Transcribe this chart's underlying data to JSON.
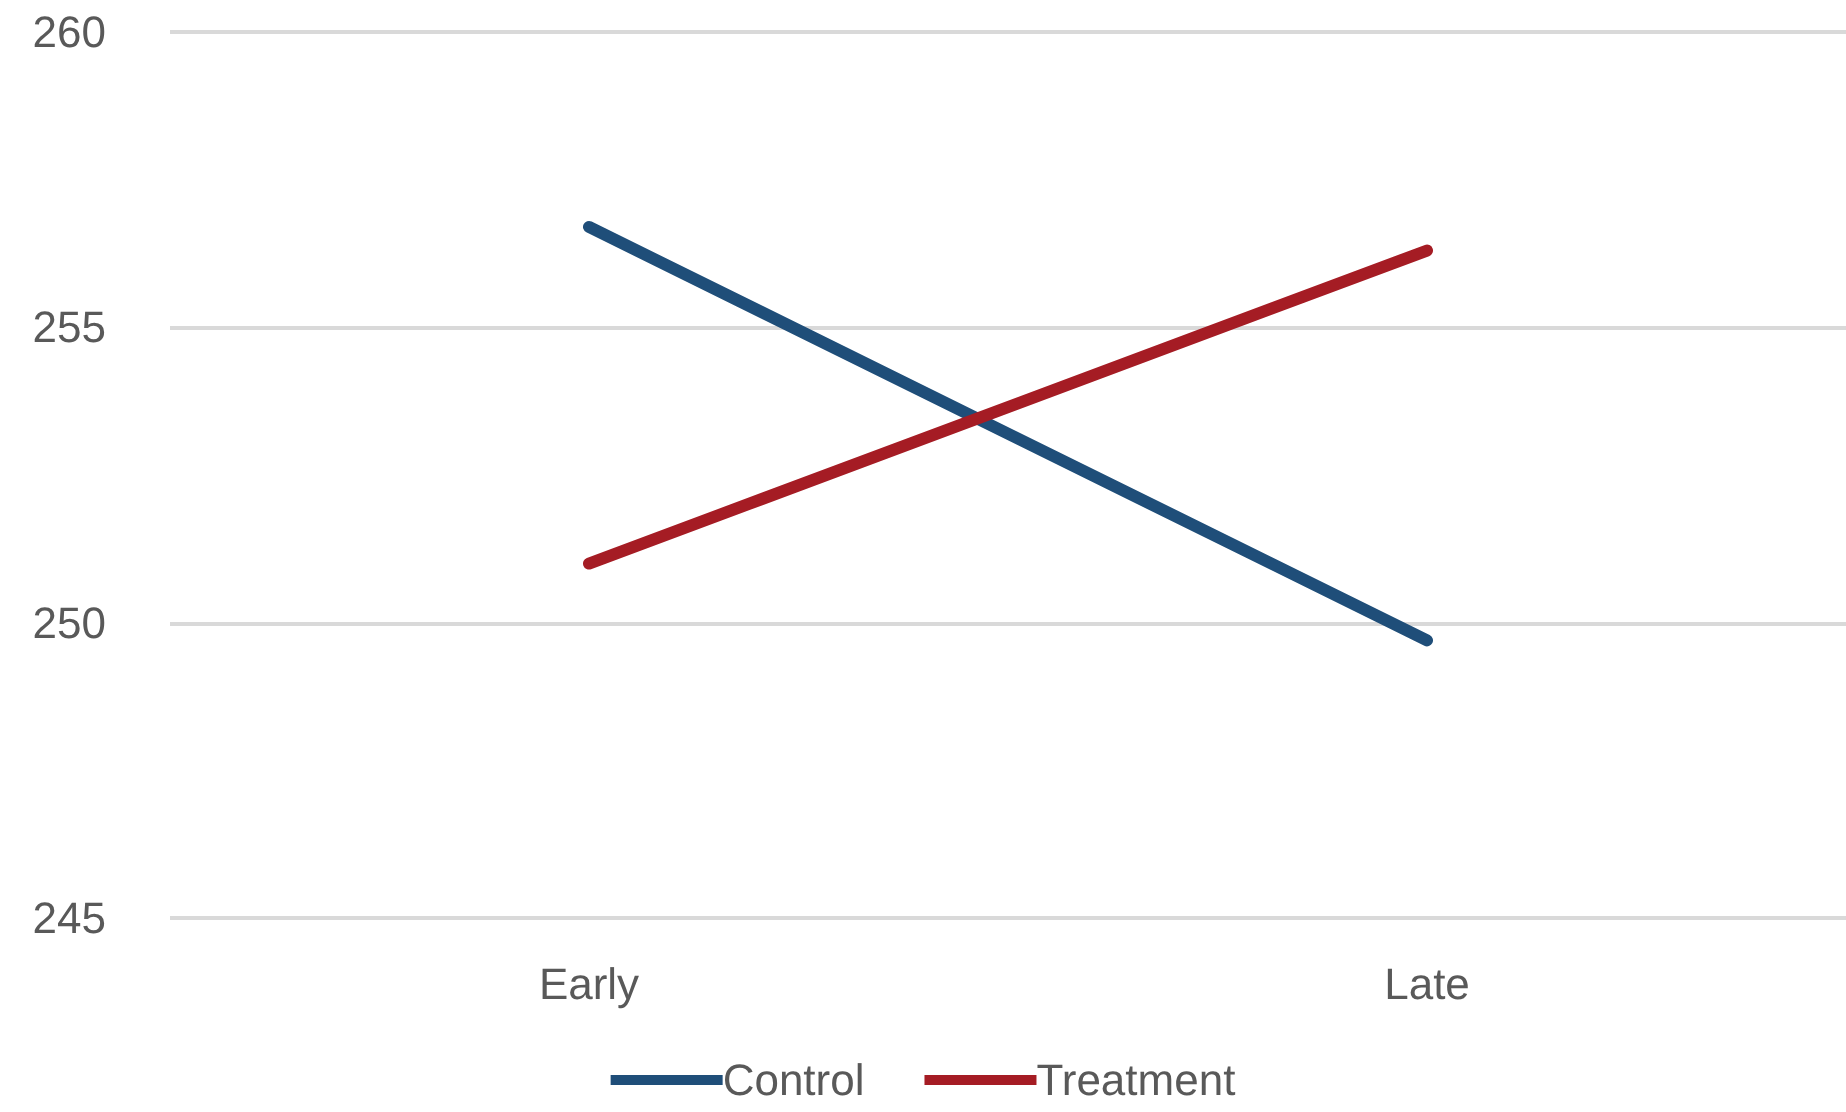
{
  "chart_data": {
    "type": "line",
    "categories": [
      "Early",
      "Late"
    ],
    "series": [
      {
        "name": "Control",
        "color": "#1f4e79",
        "values": [
          256.7,
          249.7
        ]
      },
      {
        "name": "Treatment",
        "color": "#a51c24",
        "values": [
          251.0,
          256.3
        ]
      }
    ],
    "ylim": [
      245,
      260
    ],
    "yticks": [
      245,
      250,
      255,
      260
    ],
    "grid": "y",
    "legend": "bottom",
    "marker": "none",
    "line_style": "solid"
  }
}
